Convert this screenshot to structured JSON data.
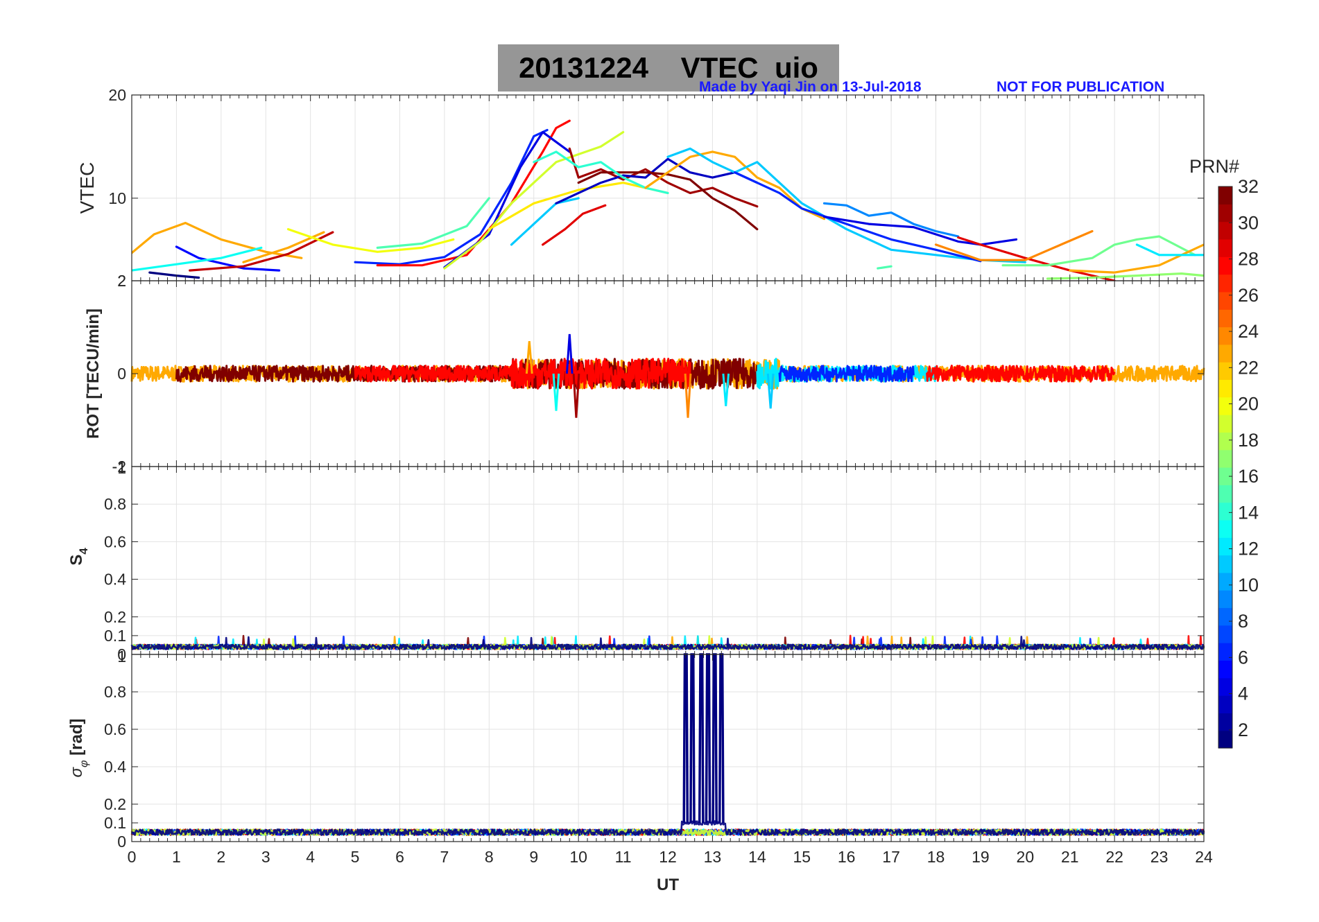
{
  "figure": {
    "title": "20131224    VTEC  uio",
    "credit_left": "Made by Yaqi Jin on 13-Jul-2018",
    "credit_right": "NOT FOR PUBLICATION"
  },
  "colorbar": {
    "label": "PRN#",
    "min": 1,
    "max": 32,
    "ticks": [
      2,
      4,
      6,
      8,
      10,
      12,
      14,
      16,
      18,
      20,
      22,
      24,
      26,
      28,
      30,
      32
    ],
    "colormap": "jet"
  },
  "chart_data": [
    {
      "type": "line",
      "panel": "vtec",
      "ylabel": "VTEC",
      "xlim": [
        0,
        24
      ],
      "ylim": [
        2,
        20
      ],
      "yticks": [
        10,
        20
      ],
      "extra_ytick_labels": [
        "2"
      ],
      "grid": true,
      "series": [
        {
          "prn": 1,
          "x": [
            0.4,
            1.0,
            1.5
          ],
          "y": [
            2.8,
            2.5,
            2.3
          ]
        },
        {
          "prn": 5,
          "x": [
            1.0,
            1.5,
            2.5,
            3.3
          ],
          "y": [
            5.3,
            4.2,
            3.2,
            3.0
          ]
        },
        {
          "prn": 23,
          "x": [
            0.0,
            0.5,
            1.2,
            2.0,
            3.0,
            3.8
          ],
          "y": [
            4.7,
            6.5,
            7.6,
            6.0,
            4.8,
            4.2
          ]
        },
        {
          "prn": 13,
          "x": [
            0.0,
            1.0,
            2.0,
            2.9
          ],
          "y": [
            3.0,
            3.6,
            4.2,
            5.2
          ]
        },
        {
          "prn": 30,
          "x": [
            1.3,
            2.5,
            3.5,
            4.5
          ],
          "y": [
            3.0,
            3.4,
            4.6,
            6.7
          ]
        },
        {
          "prn": 23,
          "x": [
            2.5,
            3.5,
            4.3
          ],
          "y": [
            3.8,
            5.2,
            6.7
          ]
        },
        {
          "prn": 20,
          "x": [
            3.5,
            4.5,
            5.5,
            6.5,
            7.2
          ],
          "y": [
            7.0,
            5.5,
            4.8,
            5.2,
            6.0
          ]
        },
        {
          "prn": 6,
          "x": [
            5.0,
            6.0,
            7.0,
            7.8,
            8.5,
            9.0,
            9.3
          ],
          "y": [
            3.8,
            3.6,
            4.3,
            6.5,
            11.5,
            16.0,
            16.6
          ]
        },
        {
          "prn": 28,
          "x": [
            5.5,
            6.5,
            7.5,
            8.5,
            9.2,
            9.5,
            9.8
          ],
          "y": [
            3.5,
            3.5,
            4.5,
            9.5,
            14.5,
            16.8,
            17.5
          ]
        },
        {
          "prn": 15,
          "x": [
            5.5,
            6.5,
            7.5,
            8.0
          ],
          "y": [
            5.2,
            5.6,
            7.3,
            10.0
          ]
        },
        {
          "prn": 4,
          "x": [
            7.0,
            8.0,
            8.7,
            9.2,
            9.8
          ],
          "y": [
            3.3,
            6.5,
            13.0,
            16.4,
            14.5
          ]
        },
        {
          "prn": 19,
          "x": [
            7.0,
            7.8,
            8.5,
            9.5,
            10.5,
            11.0
          ],
          "y": [
            3.2,
            5.8,
            9.5,
            13.5,
            15.0,
            16.4
          ]
        },
        {
          "prn": 21,
          "x": [
            8.0,
            9.0,
            10.0,
            11.0,
            12.0
          ],
          "y": [
            7.0,
            9.5,
            10.8,
            11.5,
            10.5
          ]
        },
        {
          "prn": 11,
          "x": [
            8.5,
            9.0,
            9.5,
            10.0
          ],
          "y": [
            5.5,
            7.5,
            9.5,
            10.0
          ]
        },
        {
          "prn": 29,
          "x": [
            9.2,
            9.7,
            10.1,
            10.6
          ],
          "y": [
            5.5,
            7.0,
            8.5,
            9.3
          ]
        },
        {
          "prn": 31,
          "x": [
            9.8,
            10.0,
            10.5,
            11.0,
            11.5,
            12.0,
            12.5,
            13.0,
            13.5,
            14.0
          ],
          "y": [
            14.8,
            12.0,
            12.8,
            11.8,
            12.8,
            11.5,
            10.5,
            11.0,
            10.0,
            9.2
          ]
        },
        {
          "prn": 3,
          "x": [
            9.5,
            10.0,
            10.5,
            11.0,
            11.5,
            12.0,
            12.5,
            13.0,
            13.5,
            14.0
          ],
          "y": [
            9.5,
            10.5,
            11.5,
            12.2,
            12.0,
            13.8,
            12.5,
            12.0,
            12.5,
            11.5
          ]
        },
        {
          "prn": 32,
          "x": [
            10.0,
            10.5,
            11.0,
            11.5,
            12.0,
            12.5,
            13.0,
            13.5,
            14.0
          ],
          "y": [
            11.5,
            12.5,
            12.5,
            12.5,
            12.3,
            11.8,
            10.0,
            8.8,
            7.0
          ]
        },
        {
          "prn": 14,
          "x": [
            9.0,
            9.5,
            10.0,
            10.5,
            11.0,
            11.5,
            12.0
          ],
          "y": [
            13.5,
            14.5,
            13.0,
            13.5,
            12.0,
            11.0,
            10.5
          ]
        },
        {
          "prn": 23,
          "x": [
            11.5,
            12.0,
            12.5,
            13.0,
            13.5,
            14.0,
            14.5,
            15.0,
            15.5
          ],
          "y": [
            11.0,
            12.5,
            14.0,
            14.5,
            14.0,
            12.0,
            11.0,
            9.0,
            8.0
          ]
        },
        {
          "prn": 11,
          "x": [
            12.0,
            12.5,
            13.0,
            13.5,
            14.0,
            14.5,
            15.0,
            16.0,
            17.0,
            18.0,
            19.0,
            20.0
          ],
          "y": [
            14.0,
            14.8,
            13.5,
            12.5,
            13.5,
            11.5,
            9.5,
            7.0,
            5.0,
            4.5,
            4.0,
            3.8
          ]
        },
        {
          "prn": 6,
          "x": [
            13.5,
            14.0,
            14.5,
            15.0,
            16.0,
            17.0,
            18.0,
            19.0
          ],
          "y": [
            12.5,
            11.5,
            10.5,
            9.0,
            7.5,
            6.0,
            5.0,
            3.9
          ]
        },
        {
          "prn": 9,
          "x": [
            15.5,
            16.0,
            16.5,
            17.0,
            17.5,
            18.0,
            18.5
          ],
          "y": [
            9.5,
            9.3,
            8.3,
            8.6,
            7.5,
            6.8,
            6.3
          ]
        },
        {
          "prn": 4,
          "x": [
            15.5,
            16.5,
            17.5,
            18.5,
            19.0,
            19.8
          ],
          "y": [
            8.2,
            7.5,
            7.2,
            5.8,
            5.5,
            6.0
          ]
        },
        {
          "prn": 29,
          "x": [
            18.5,
            19.0,
            20.0,
            21.0,
            22.0
          ],
          "y": [
            6.2,
            5.5,
            4.2,
            3.0,
            2.0
          ]
        },
        {
          "prn": 24,
          "x": [
            18.0,
            19.0,
            20.0,
            20.8,
            21.5
          ],
          "y": [
            5.5,
            4.0,
            4.0,
            5.5,
            6.8
          ]
        },
        {
          "prn": 15,
          "x": [
            16.7,
            17.0
          ],
          "y": [
            3.2,
            3.4
          ]
        },
        {
          "prn": 16,
          "x": [
            19.5,
            20.5,
            21.5,
            22.0,
            22.5,
            23.0,
            23.8
          ],
          "y": [
            3.5,
            3.5,
            4.2,
            5.5,
            6.0,
            6.3,
            4.5
          ]
        },
        {
          "prn": 17,
          "x": [
            20.5,
            21.5,
            22.5,
            23.5,
            24.0
          ],
          "y": [
            2.2,
            2.3,
            2.5,
            2.7,
            2.5
          ]
        },
        {
          "prn": 23,
          "x": [
            21.0,
            22.0,
            23.0,
            24.0
          ],
          "y": [
            3.0,
            2.8,
            3.5,
            5.5
          ]
        },
        {
          "prn": 12,
          "x": [
            22.5,
            23.0,
            24.0
          ],
          "y": [
            5.5,
            4.5,
            4.5
          ]
        }
      ]
    },
    {
      "type": "line",
      "panel": "rot",
      "ylabel": "ROT [TECU/min]",
      "xlim": [
        0,
        24
      ],
      "ylim": [
        -2,
        2
      ],
      "yticks": [
        0
      ],
      "extra_ytick_labels": [
        "2",
        "-2",
        "-1"
      ],
      "grid": true,
      "noise_segments": [
        {
          "prn": 23,
          "x": [
            0.0,
            24.0
          ]
        },
        {
          "prn": 32,
          "x": [
            1.0,
            14.0
          ]
        },
        {
          "prn": 28,
          "x": [
            5.0,
            12.5
          ]
        },
        {
          "prn": 12,
          "x": [
            14.0,
            18.0
          ]
        },
        {
          "prn": 28,
          "x": [
            17.8,
            22.0
          ]
        },
        {
          "prn": 6,
          "x": [
            14.5,
            17.5
          ]
        }
      ],
      "spikes": [
        {
          "prn": 31,
          "x": 9.95,
          "y": -0.95
        },
        {
          "prn": 13,
          "x": 9.5,
          "y": -0.8
        },
        {
          "prn": 4,
          "x": 9.8,
          "y": 0.85
        },
        {
          "prn": 24,
          "x": 12.45,
          "y": -0.95
        },
        {
          "prn": 12,
          "x": 13.3,
          "y": -0.7
        },
        {
          "prn": 11,
          "x": 14.3,
          "y": -0.75
        },
        {
          "prn": 23,
          "x": 8.9,
          "y": 0.7
        }
      ]
    },
    {
      "type": "line",
      "panel": "s4",
      "ylabel": "S4",
      "xlim": [
        0,
        24
      ],
      "ylim": [
        0,
        1
      ],
      "yticks": [
        0.1,
        0.2,
        0.4,
        0.6,
        0.8
      ],
      "extra_ytick_labels": [
        "1",
        "0"
      ],
      "grid": true,
      "baseline_mean": 0.04,
      "max_observed": 0.1
    },
    {
      "type": "line",
      "panel": "sigma_phi",
      "ylabel": "σφ [rad]",
      "xlabel": "UT",
      "xlim": [
        0,
        24
      ],
      "ylim": [
        0,
        1
      ],
      "xticks": [
        0,
        1,
        2,
        3,
        4,
        5,
        6,
        7,
        8,
        9,
        10,
        11,
        12,
        13,
        14,
        15,
        16,
        17,
        18,
        19,
        20,
        21,
        22,
        23,
        24
      ],
      "yticks": [
        0,
        0.1,
        0.2,
        0.4,
        0.6,
        0.8
      ],
      "grid": true,
      "baseline_mean": 0.05,
      "spike_prn": 1,
      "spike_x": [
        12.4,
        12.55,
        12.75,
        12.9,
        13.05,
        13.2
      ],
      "spike_y": 1.0
    }
  ]
}
